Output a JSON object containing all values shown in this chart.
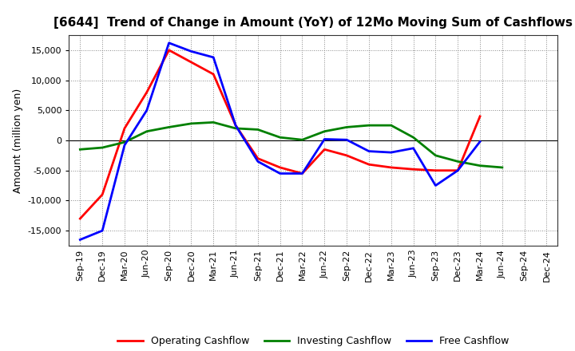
{
  "title": "[6644]  Trend of Change in Amount (YoY) of 12Mo Moving Sum of Cashflows",
  "ylabel": "Amount (million yen)",
  "labels": [
    "Sep-19",
    "Dec-19",
    "Mar-20",
    "Jun-20",
    "Sep-20",
    "Dec-20",
    "Mar-21",
    "Jun-21",
    "Sep-21",
    "Dec-21",
    "Mar-22",
    "Jun-22",
    "Sep-22",
    "Dec-22",
    "Mar-23",
    "Jun-23",
    "Sep-23",
    "Dec-23",
    "Mar-24",
    "Jun-24",
    "Sep-24",
    "Dec-24"
  ],
  "operating": [
    -13000,
    -9000,
    2000,
    8000,
    15000,
    13000,
    11000,
    2500,
    -3000,
    -4500,
    -5500,
    -1500,
    -2500,
    -4000,
    -4500,
    -4800,
    -5000,
    -5000,
    4000,
    null,
    null,
    null
  ],
  "investing": [
    -1500,
    -1200,
    -300,
    1500,
    2200,
    2800,
    3000,
    2000,
    1800,
    500,
    100,
    1500,
    2200,
    2500,
    2500,
    500,
    -2500,
    -3500,
    -4200,
    -4500,
    null,
    null
  ],
  "free": [
    -16500,
    -15000,
    -800,
    5000,
    16200,
    14800,
    13800,
    2500,
    -3500,
    -5500,
    -5500,
    200,
    100,
    -1800,
    -2000,
    -1300,
    -7500,
    -5000,
    -200,
    null,
    null,
    null
  ],
  "operating_color": "#ff0000",
  "investing_color": "#008000",
  "free_color": "#0000ff",
  "ylim": [
    -17500,
    17500
  ],
  "yticks": [
    -15000,
    -10000,
    -5000,
    0,
    5000,
    10000,
    15000
  ],
  "background_color": "#ffffff",
  "grid_color": "#888888",
  "spine_color": "#333333",
  "title_fontsize": 11,
  "axis_fontsize": 8,
  "ylabel_fontsize": 9,
  "legend_fontsize": 9,
  "linewidth": 2.0
}
